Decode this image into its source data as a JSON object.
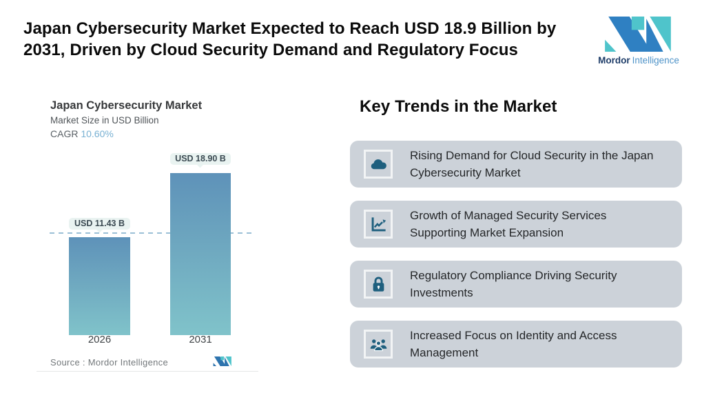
{
  "header": {
    "headline": "Japan Cybersecurity Market Expected to Reach USD 18.9 Billion by 2031, Driven by Cloud Security Demand and Regulatory Focus",
    "brand": {
      "bold": "Mordor",
      "light": "Intelligence"
    }
  },
  "chart": {
    "title": "Japan Cybersecurity Market",
    "subtitle": "Market Size in USD Billion",
    "cagr_label": "CAGR",
    "cagr_value": "10.60%",
    "source": "Source :  Mordor Intelligence"
  },
  "chart_data": {
    "type": "bar",
    "title": "Japan Cybersecurity Market",
    "ylabel": "Market Size in USD Billion",
    "cagr_percent": 10.6,
    "categories": [
      "2026",
      "2031"
    ],
    "values": [
      11.43,
      18.9
    ],
    "labels": [
      "USD 11.43 B",
      "USD 18.90 B"
    ],
    "unit": "USD Billion",
    "ylim": [
      0,
      18.9
    ],
    "grid": false,
    "annotations": [
      "dashed reference line at 2026 value (11.43)"
    ],
    "bar_gradient": [
      "#5e92b9",
      "#80c3ca"
    ],
    "label_pill_color": "#e9f3f1",
    "dashed_line_color": "#9abfd6",
    "source": "Mordor Intelligence"
  },
  "trends": {
    "heading": "Key Trends in the Market",
    "items": [
      {
        "icon": "cloud-icon",
        "text": "Rising Demand for Cloud Security in the Japan Cybersecurity Market"
      },
      {
        "icon": "line-chart-icon",
        "text": "Growth of Managed Security Services Supporting Market Expansion"
      },
      {
        "icon": "lock-icon",
        "text": "Regulatory Compliance Driving Security Investments"
      },
      {
        "icon": "people-icon",
        "text": "Increased Focus on Identity and Access Management"
      }
    ]
  },
  "colors": {
    "card_background": "#ccd2d9",
    "icon_color": "#1e5f7e",
    "cagr_value_color": "#79b1d3",
    "brand_navy": "#1d3c68",
    "brand_blue": "#4e93c8",
    "logo_blue": "#2f80c2",
    "logo_teal": "#4fc4cb"
  }
}
